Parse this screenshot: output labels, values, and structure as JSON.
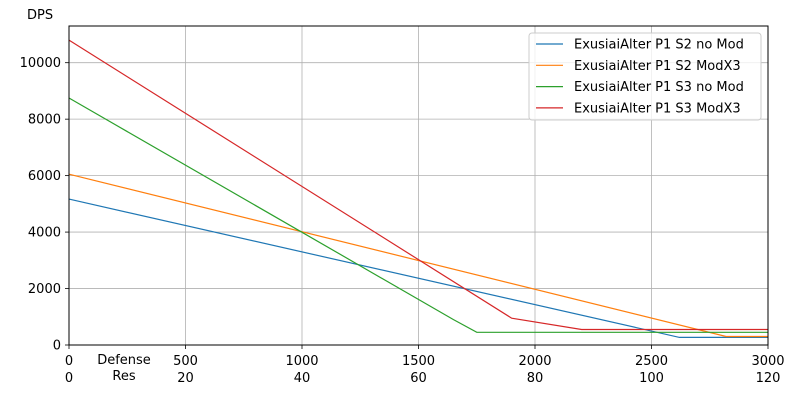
{
  "chart_data": {
    "type": "line",
    "ylabel": "DPS",
    "xlabel_lines": [
      "Defense",
      "Res"
    ],
    "xlim": [
      0,
      3000
    ],
    "ylim": [
      0,
      11300
    ],
    "x_ticks": [
      0,
      500,
      1000,
      1500,
      2000,
      2500,
      3000
    ],
    "x_tick_labels": [
      "0",
      "500",
      "1000",
      "1500",
      "2000",
      "2500",
      "3000"
    ],
    "x2_tick_labels": [
      "0",
      "20",
      "40",
      "60",
      "80",
      "100",
      "120"
    ],
    "y_ticks": [
      0,
      2000,
      4000,
      6000,
      8000,
      10000
    ],
    "y_tick_labels": [
      "0",
      "2000",
      "4000",
      "6000",
      "8000",
      "10000"
    ],
    "grid": true,
    "legend_position": "top-right",
    "series": [
      {
        "name": "ExusiaiAlter P1 S2 no Mod",
        "color": "#1f77b4",
        "x": [
          0,
          2620,
          3000
        ],
        "y": [
          5170,
          270,
          270
        ]
      },
      {
        "name": "ExusiaiAlter P1 S2 ModX3",
        "color": "#ff7f0e",
        "x": [
          0,
          2820,
          3000
        ],
        "y": [
          6050,
          300,
          300
        ]
      },
      {
        "name": "ExusiaiAlter P1 S3 no Mod",
        "color": "#2ca02c",
        "x": [
          0,
          1650,
          1750,
          3000
        ],
        "y": [
          8750,
          900,
          450,
          450
        ]
      },
      {
        "name": "ExusiaiAlter P1 S3 ModX3",
        "color": "#d62728",
        "x": [
          0,
          1900,
          2200,
          3000
        ],
        "y": [
          10800,
          950,
          550,
          550
        ]
      }
    ]
  }
}
